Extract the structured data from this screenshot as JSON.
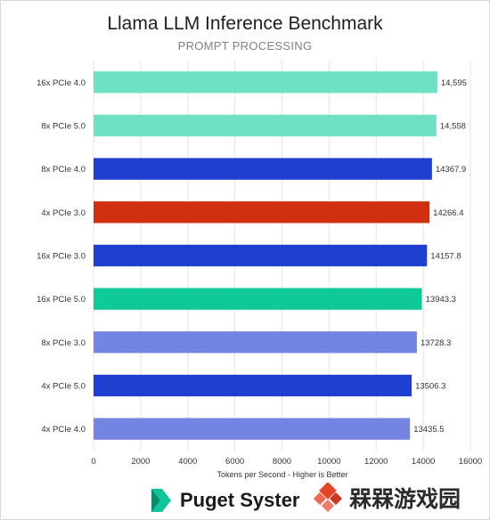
{
  "chart_data": {
    "type": "bar",
    "orientation": "horizontal",
    "title": "Llama LLM Inference Benchmark",
    "subtitle": "PROMPT PROCESSING",
    "xlabel": "Tokens per Second - Higher is Better",
    "ylabel": "",
    "xlim": [
      0,
      16000
    ],
    "xticks": [
      "0",
      "2000",
      "4000",
      "6000",
      "8000",
      "10000",
      "12000",
      "14000",
      "16000"
    ],
    "grid": true,
    "categories": [
      "16x PCIe 4.0",
      "8x PCIe 5.0",
      "8x PCIe 4.0",
      "4x PCIe 3.0",
      "16x PCIe 3.0",
      "16x PCIe 5.0",
      "8x PCIe 3.0",
      "4x PCIe 5.0",
      "4x PCIe 4.0"
    ],
    "values": [
      14595,
      14558,
      14367.9,
      14266.4,
      14157.8,
      13943.3,
      13728.3,
      13506.3,
      13435.5
    ],
    "value_labels": [
      "14,595",
      "14,558",
      "14367.9",
      "14266.4",
      "14157.8",
      "13943.3",
      "13728.3",
      "13506.3",
      "13435.5"
    ],
    "colors": [
      "#6ee0c4",
      "#6ee0c4",
      "#1f3fd0",
      "#d0300f",
      "#1f3fd0",
      "#0fc99a",
      "#7385e0",
      "#1f3fd0",
      "#7385e0"
    ]
  },
  "branding": {
    "logo_text": "Puget Syster",
    "logo_color": "#1a1a1a",
    "logo_accent": "#11c49a",
    "watermark_text": "槑槑游戏园",
    "watermark_accent": "#e3452b"
  }
}
